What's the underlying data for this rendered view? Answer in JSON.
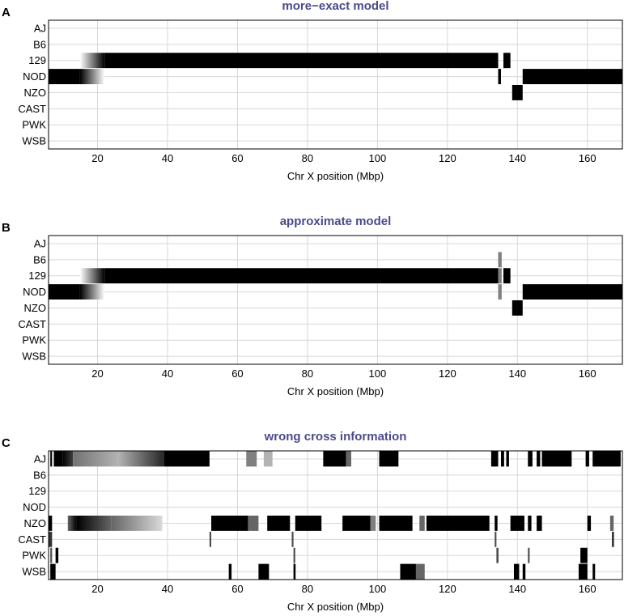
{
  "chart_data": [
    {
      "panel": "A",
      "type": "heatmap",
      "title": "more−exact model",
      "xlabel": "Chr X position (Mbp)",
      "xlim": [
        6,
        170
      ],
      "xticks": [
        20,
        40,
        60,
        80,
        100,
        120,
        140,
        160
      ],
      "strains": [
        "AJ",
        "B6",
        "129",
        "NOD",
        "NZO",
        "CAST",
        "PWK",
        "WSB"
      ],
      "segments": [
        {
          "strain": "129",
          "from": 15,
          "to": 22,
          "intensity": 0,
          "intensity_end": 1
        },
        {
          "strain": "129",
          "from": 22,
          "to": 134.5,
          "intensity": 1
        },
        {
          "strain": "129",
          "from": 136,
          "to": 138,
          "intensity": 1
        },
        {
          "strain": "NOD",
          "from": 6,
          "to": 15,
          "intensity": 1
        },
        {
          "strain": "NOD",
          "from": 15,
          "to": 22,
          "intensity": 1,
          "intensity_end": 0
        },
        {
          "strain": "NOD",
          "from": 134.5,
          "to": 135.3,
          "intensity": 1
        },
        {
          "strain": "NOD",
          "from": 141.5,
          "to": 170,
          "intensity": 1
        },
        {
          "strain": "NZO",
          "from": 138.5,
          "to": 141.5,
          "intensity": 1
        }
      ]
    },
    {
      "panel": "B",
      "type": "heatmap",
      "title": "approximate model",
      "xlabel": "Chr X position (Mbp)",
      "xlim": [
        6,
        170
      ],
      "xticks": [
        20,
        40,
        60,
        80,
        100,
        120,
        140,
        160
      ],
      "strains": [
        "AJ",
        "B6",
        "129",
        "NOD",
        "NZO",
        "CAST",
        "PWK",
        "WSB"
      ],
      "segments": [
        {
          "strain": "B6",
          "from": 134.5,
          "to": 135.5,
          "intensity": 0.5
        },
        {
          "strain": "129",
          "from": 15,
          "to": 22,
          "intensity": 0,
          "intensity_end": 1
        },
        {
          "strain": "129",
          "from": 22,
          "to": 134.5,
          "intensity": 1
        },
        {
          "strain": "129",
          "from": 134.5,
          "to": 135.5,
          "intensity": 0.5
        },
        {
          "strain": "129",
          "from": 136,
          "to": 138,
          "intensity": 1
        },
        {
          "strain": "NOD",
          "from": 6,
          "to": 15,
          "intensity": 1
        },
        {
          "strain": "NOD",
          "from": 15,
          "to": 22,
          "intensity": 1,
          "intensity_end": 0
        },
        {
          "strain": "NOD",
          "from": 134.5,
          "to": 135.5,
          "intensity": 0.5
        },
        {
          "strain": "NOD",
          "from": 141.5,
          "to": 170,
          "intensity": 1
        },
        {
          "strain": "NZO",
          "from": 138.5,
          "to": 141.5,
          "intensity": 1
        }
      ]
    },
    {
      "panel": "C",
      "type": "heatmap",
      "title": "wrong cross information",
      "xlabel": "Chr X position (Mbp)",
      "xlim": [
        6,
        170
      ],
      "xticks": [
        20,
        40,
        60,
        80,
        100,
        120,
        140,
        160
      ],
      "strains": [
        "AJ",
        "B6",
        "129",
        "NOD",
        "NZO",
        "CAST",
        "PWK",
        "WSB"
      ],
      "segments": [
        {
          "strain": "AJ",
          "from": 6.5,
          "to": 7,
          "intensity": 1
        },
        {
          "strain": "AJ",
          "from": 7.5,
          "to": 10,
          "intensity": 1
        },
        {
          "strain": "AJ",
          "from": 10,
          "to": 13,
          "intensity": 1,
          "intensity_end": 0.75
        },
        {
          "strain": "AJ",
          "from": 13,
          "to": 26,
          "intensity": 0.55,
          "intensity_end": 0.3
        },
        {
          "strain": "AJ",
          "from": 26,
          "to": 39,
          "intensity": 0.3,
          "intensity_end": 0.85
        },
        {
          "strain": "AJ",
          "from": 39,
          "to": 52,
          "intensity": 1
        },
        {
          "strain": "AJ",
          "from": 62.5,
          "to": 65.5,
          "intensity": 0.5
        },
        {
          "strain": "AJ",
          "from": 67.5,
          "to": 70,
          "intensity": 0.3
        },
        {
          "strain": "AJ",
          "from": 84.5,
          "to": 91,
          "intensity": 1
        },
        {
          "strain": "AJ",
          "from": 91,
          "to": 92.5,
          "intensity": 0.6
        },
        {
          "strain": "AJ",
          "from": 100.5,
          "to": 106,
          "intensity": 1
        },
        {
          "strain": "AJ",
          "from": 132.5,
          "to": 134.5,
          "intensity": 1
        },
        {
          "strain": "AJ",
          "from": 135.3,
          "to": 136.2,
          "intensity": 1
        },
        {
          "strain": "AJ",
          "from": 136.8,
          "to": 137.6,
          "intensity": 1
        },
        {
          "strain": "AJ",
          "from": 143,
          "to": 144.3,
          "intensity": 1
        },
        {
          "strain": "AJ",
          "from": 145.5,
          "to": 146.5,
          "intensity": 1
        },
        {
          "strain": "AJ",
          "from": 147,
          "to": 155.5,
          "intensity": 1
        },
        {
          "strain": "AJ",
          "from": 159.5,
          "to": 160.5,
          "intensity": 1
        },
        {
          "strain": "AJ",
          "from": 161.5,
          "to": 169.5,
          "intensity": 1
        },
        {
          "strain": "NZO",
          "from": 6,
          "to": 7,
          "intensity": 1
        },
        {
          "strain": "NZO",
          "from": 11.5,
          "to": 14,
          "intensity": 0.6,
          "intensity_end": 1
        },
        {
          "strain": "NZO",
          "from": 14,
          "to": 24,
          "intensity": 1,
          "intensity_end": 0.6
        },
        {
          "strain": "NZO",
          "from": 24,
          "to": 38.5,
          "intensity": 0.6,
          "intensity_end": 0.15
        },
        {
          "strain": "NZO",
          "from": 52.5,
          "to": 63,
          "intensity": 1
        },
        {
          "strain": "NZO",
          "from": 63,
          "to": 66,
          "intensity": 0.6
        },
        {
          "strain": "NZO",
          "from": 68.5,
          "to": 75,
          "intensity": 1
        },
        {
          "strain": "NZO",
          "from": 76.5,
          "to": 84,
          "intensity": 1
        },
        {
          "strain": "NZO",
          "from": 90,
          "to": 98,
          "intensity": 1
        },
        {
          "strain": "NZO",
          "from": 98,
          "to": 99.5,
          "intensity": 0.5
        },
        {
          "strain": "NZO",
          "from": 100.5,
          "to": 110,
          "intensity": 1
        },
        {
          "strain": "NZO",
          "from": 112,
          "to": 113.5,
          "intensity": 0.6
        },
        {
          "strain": "NZO",
          "from": 114,
          "to": 132,
          "intensity": 1
        },
        {
          "strain": "NZO",
          "from": 133.5,
          "to": 134.3,
          "intensity": 1
        },
        {
          "strain": "NZO",
          "from": 138,
          "to": 142,
          "intensity": 1
        },
        {
          "strain": "NZO",
          "from": 143,
          "to": 144,
          "intensity": 1
        },
        {
          "strain": "NZO",
          "from": 145.5,
          "to": 147,
          "intensity": 1
        },
        {
          "strain": "NZO",
          "from": 160,
          "to": 161,
          "intensity": 1
        },
        {
          "strain": "NZO",
          "from": 166.5,
          "to": 167.5,
          "intensity": 0.6
        },
        {
          "strain": "CAST",
          "from": 6,
          "to": 7,
          "intensity": 0.8
        },
        {
          "strain": "CAST",
          "from": 52,
          "to": 52.5,
          "intensity": 0.7
        },
        {
          "strain": "CAST",
          "from": 75.5,
          "to": 76,
          "intensity": 0.7
        },
        {
          "strain": "CAST",
          "from": 133.5,
          "to": 134,
          "intensity": 0.7
        },
        {
          "strain": "CAST",
          "from": 167,
          "to": 167.6,
          "intensity": 0.8
        },
        {
          "strain": "PWK",
          "from": 8,
          "to": 8.8,
          "intensity": 1
        },
        {
          "strain": "PWK",
          "from": 6.5,
          "to": 7,
          "intensity": 0.7
        },
        {
          "strain": "PWK",
          "from": 76,
          "to": 76.5,
          "intensity": 0.7
        },
        {
          "strain": "PWK",
          "from": 134,
          "to": 134.6,
          "intensity": 0.7
        },
        {
          "strain": "PWK",
          "from": 143,
          "to": 143.5,
          "intensity": 0.7
        },
        {
          "strain": "PWK",
          "from": 158,
          "to": 160,
          "intensity": 1
        },
        {
          "strain": "WSB",
          "from": 6.5,
          "to": 8,
          "intensity": 1
        },
        {
          "strain": "WSB",
          "from": 57.5,
          "to": 58.3,
          "intensity": 1
        },
        {
          "strain": "WSB",
          "from": 66,
          "to": 69,
          "intensity": 1
        },
        {
          "strain": "WSB",
          "from": 76,
          "to": 76.6,
          "intensity": 1
        },
        {
          "strain": "WSB",
          "from": 106.5,
          "to": 111,
          "intensity": 1
        },
        {
          "strain": "WSB",
          "from": 111,
          "to": 113.5,
          "intensity": 0.6
        },
        {
          "strain": "WSB",
          "from": 139,
          "to": 140.5,
          "intensity": 1
        },
        {
          "strain": "WSB",
          "from": 141.5,
          "to": 142.3,
          "intensity": 1
        },
        {
          "strain": "WSB",
          "from": 157.5,
          "to": 160,
          "intensity": 1
        },
        {
          "strain": "WSB",
          "from": 161.5,
          "to": 162.2,
          "intensity": 1
        }
      ]
    }
  ]
}
